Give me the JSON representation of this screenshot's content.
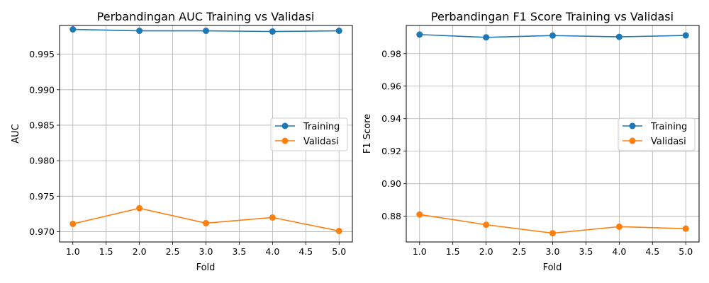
{
  "colors": {
    "training": "#1f77b4",
    "validasi": "#ff7f0e",
    "grid": "#b0b0b0",
    "axis": "#000000"
  },
  "chart_data": [
    {
      "type": "line",
      "title": "Perbandingan AUC Training vs Validasi",
      "xlabel": "Fold",
      "ylabel": "AUC",
      "x": [
        1,
        2,
        3,
        4,
        5
      ],
      "xlim": [
        0.8,
        5.2
      ],
      "ylim": [
        0.96855,
        0.99905
      ],
      "xticks": [
        1.0,
        1.5,
        2.0,
        2.5,
        3.0,
        3.5,
        4.0,
        4.5,
        5.0
      ],
      "xtick_labels": [
        "1.0",
        "1.5",
        "2.0",
        "2.5",
        "3.0",
        "3.5",
        "4.0",
        "4.5",
        "5.0"
      ],
      "yticks": [
        0.97,
        0.975,
        0.98,
        0.985,
        0.99,
        0.995
      ],
      "ytick_labels": [
        "0.970",
        "0.975",
        "0.980",
        "0.985",
        "0.990",
        "0.995"
      ],
      "grid": true,
      "legend": "center-right",
      "series": [
        {
          "name": "Training",
          "values": [
            0.9985,
            0.9983,
            0.9983,
            0.9982,
            0.9983
          ]
        },
        {
          "name": "Validasi",
          "values": [
            0.9711,
            0.9733,
            0.9712,
            0.972,
            0.9701
          ]
        }
      ]
    },
    {
      "type": "line",
      "title": "Perbandingan F1 Score Training vs Validasi",
      "xlabel": "Fold",
      "ylabel": "F1 Score",
      "x": [
        1,
        2,
        3,
        4,
        5
      ],
      "xlim": [
        0.8,
        5.2
      ],
      "ylim": [
        0.8642,
        0.9973
      ],
      "xticks": [
        1.0,
        1.5,
        2.0,
        2.5,
        3.0,
        3.5,
        4.0,
        4.5,
        5.0
      ],
      "xtick_labels": [
        "1.0",
        "1.5",
        "2.0",
        "2.5",
        "3.0",
        "3.5",
        "4.0",
        "4.5",
        "5.0"
      ],
      "yticks": [
        0.88,
        0.9,
        0.92,
        0.94,
        0.96,
        0.98
      ],
      "ytick_labels": [
        "0.88",
        "0.90",
        "0.92",
        "0.94",
        "0.96",
        "0.98"
      ],
      "grid": true,
      "legend": "center-right",
      "series": [
        {
          "name": "Training",
          "values": [
            0.9917,
            0.99,
            0.9911,
            0.9903,
            0.9912
          ]
        },
        {
          "name": "Validasi",
          "values": [
            0.8811,
            0.8748,
            0.8696,
            0.8736,
            0.8724
          ]
        }
      ]
    }
  ]
}
